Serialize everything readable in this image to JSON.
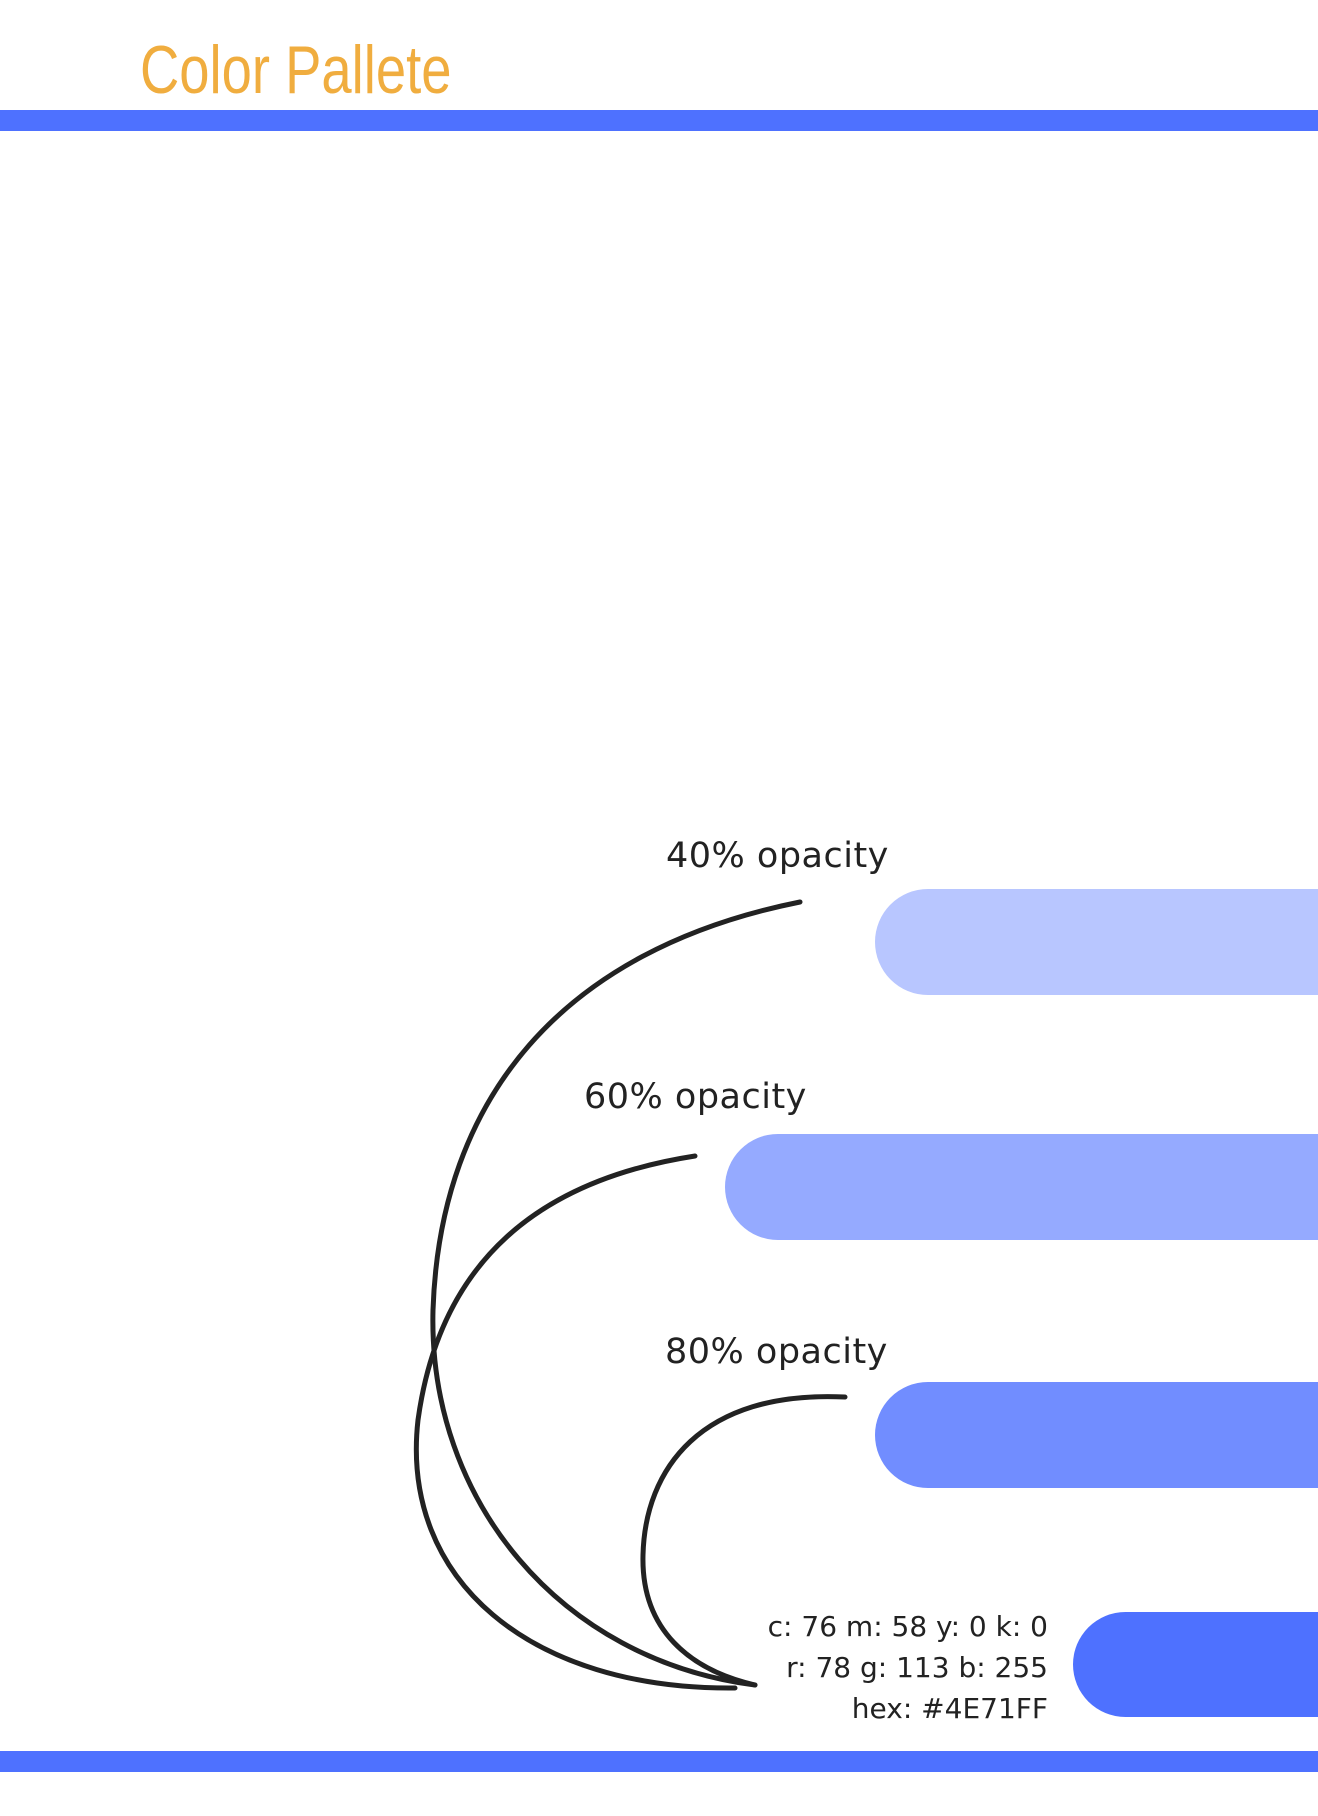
{
  "title": "Color Pallete",
  "colors": {
    "title": "#f0ad3f",
    "accent": "#4E71FF",
    "line": "#222222"
  },
  "swatches": [
    {
      "label": "40% opacity",
      "opacity": 0.4,
      "color": "#4E71FF"
    },
    {
      "label": "60% opacity",
      "opacity": 0.6,
      "color": "#4E71FF"
    },
    {
      "label": "80% opacity",
      "opacity": 0.8,
      "color": "#4E71FF"
    },
    {
      "label": "",
      "opacity": 1.0,
      "color": "#4E71FF"
    }
  ],
  "base_color": {
    "cmyk": "c: 76 m: 58 y: 0 k: 0",
    "rgb": "r: 78 g: 113 b: 255",
    "hex": "hex: #4E71FF"
  }
}
